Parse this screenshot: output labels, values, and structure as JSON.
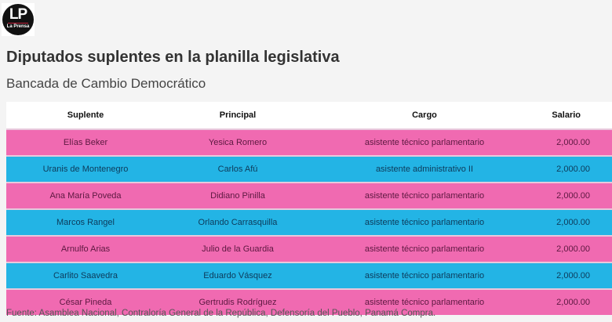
{
  "logo": {
    "mark": "LP",
    "name": "La Prensa"
  },
  "title": "Diputados suplentes en la planilla legislativa",
  "subtitle": "Bancada de Cambio Democrático",
  "colors": {
    "pink_row": "#f06ab1",
    "blue_row": "#23b4e5"
  },
  "table": {
    "headers": [
      "Suplente",
      "Principal",
      "Cargo",
      "Salario"
    ],
    "rows": [
      {
        "suplente": "Elías Beker",
        "principal": "Yesica Romero",
        "cargo": "asistente técnico parlamentario",
        "salario": "2,000.00"
      },
      {
        "suplente": "Uranis de Montenegro",
        "principal": "Carlos Afú",
        "cargo": "asistente administrativo II",
        "salario": "2,000.00"
      },
      {
        "suplente": "Ana María Poveda",
        "principal": "Didiano Pinilla",
        "cargo": "asistente técnico parlamentario",
        "salario": "2,000.00"
      },
      {
        "suplente": "Marcos Rangel",
        "principal": "Orlando Carrasquilla",
        "cargo": "asistente técnico parlamentario",
        "salario": "2,000.00"
      },
      {
        "suplente": "Arnulfo Arias",
        "principal": "Julio de la Guardia",
        "cargo": "asistente técnico parlamentario",
        "salario": "2,000.00"
      },
      {
        "suplente": "Carlito Saavedra",
        "principal": "Eduardo Vásquez",
        "cargo": "asistente técnico parlamentario",
        "salario": "2,000.00"
      },
      {
        "suplente": "César Pineda",
        "principal": "Gertrudis Rodríguez",
        "cargo": "asistente técnico parlamentario",
        "salario": "2,000.00"
      }
    ]
  },
  "footer": "Fuente: Asamblea Nacional, Contraloría General de la República, Defensoría del Pueblo, Panamá Compra."
}
